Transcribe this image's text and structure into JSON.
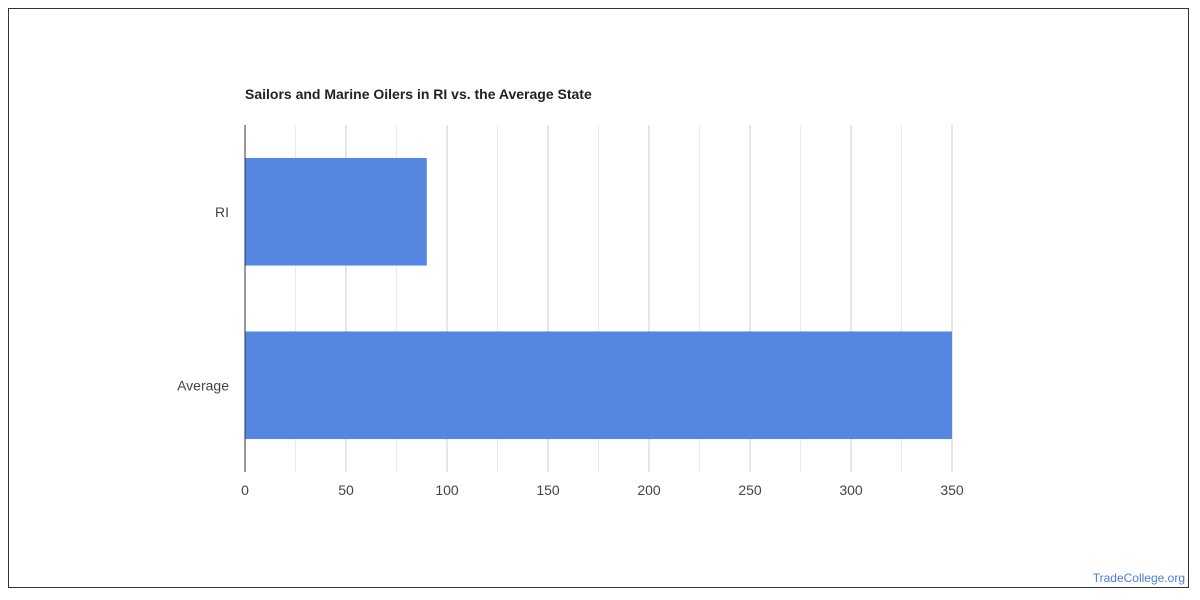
{
  "chart_data": {
    "type": "bar",
    "orientation": "horizontal",
    "title": "Sailors and Marine Oilers in RI vs. the Average State",
    "categories": [
      "RI",
      "Average"
    ],
    "values": [
      90,
      350
    ],
    "xlim": [
      0,
      350
    ],
    "xticks": [
      0,
      50,
      100,
      150,
      200,
      250,
      300,
      350
    ],
    "grid": true,
    "bar_color": "#5486e2"
  },
  "footer": {
    "source": "TradeCollege.org"
  }
}
